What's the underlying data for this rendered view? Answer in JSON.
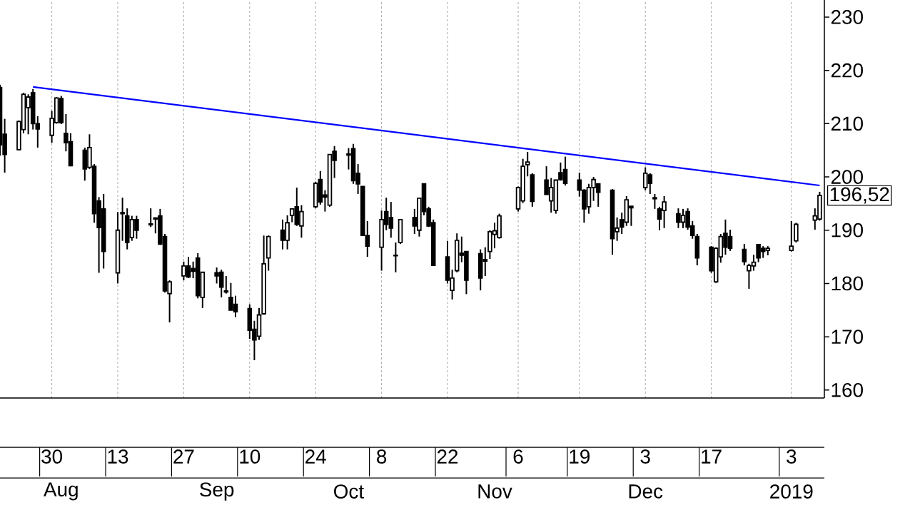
{
  "chart_data": {
    "type": "candlestick",
    "x": [
      "2018-07-19",
      "2018-07-20",
      "2018-07-23",
      "2018-07-24",
      "2018-07-25",
      "2018-07-26",
      "2018-07-27",
      "2018-07-30",
      "2018-07-31",
      "2018-08-01",
      "2018-08-02",
      "2018-08-03",
      "2018-08-06",
      "2018-08-07",
      "2018-08-08",
      "2018-08-09",
      "2018-08-10",
      "2018-08-13",
      "2018-08-14",
      "2018-08-15",
      "2018-08-16",
      "2018-08-17",
      "2018-08-20",
      "2018-08-21",
      "2018-08-22",
      "2018-08-23",
      "2018-08-24",
      "2018-08-27",
      "2018-08-28",
      "2018-08-29",
      "2018-08-30",
      "2018-08-31",
      "2018-09-03",
      "2018-09-04",
      "2018-09-05",
      "2018-09-06",
      "2018-09-07",
      "2018-09-10",
      "2018-09-11",
      "2018-09-12",
      "2018-09-13",
      "2018-09-14",
      "2018-09-17",
      "2018-09-18",
      "2018-09-19",
      "2018-09-20",
      "2018-09-21",
      "2018-09-24",
      "2018-09-25",
      "2018-09-26",
      "2018-09-27",
      "2018-09-28",
      "2018-10-01",
      "2018-10-02",
      "2018-10-03",
      "2018-10-04",
      "2018-10-05",
      "2018-10-08",
      "2018-10-09",
      "2018-10-10",
      "2018-10-11",
      "2018-10-12",
      "2018-10-15",
      "2018-10-16",
      "2018-10-17",
      "2018-10-18",
      "2018-10-19",
      "2018-10-22",
      "2018-10-23",
      "2018-10-24",
      "2018-10-25",
      "2018-10-26",
      "2018-10-29",
      "2018-10-30",
      "2018-10-31",
      "2018-11-01",
      "2018-11-02",
      "2018-11-06",
      "2018-11-07",
      "2018-11-08",
      "2018-11-09",
      "2018-11-12",
      "2018-11-13",
      "2018-11-14",
      "2018-11-15",
      "2018-11-16",
      "2018-11-19",
      "2018-11-20",
      "2018-11-21",
      "2018-11-22",
      "2018-11-23",
      "2018-11-26",
      "2018-11-27",
      "2018-11-28",
      "2018-11-29",
      "2018-11-30",
      "2018-12-03",
      "2018-12-04",
      "2018-12-05",
      "2018-12-06",
      "2018-12-07",
      "2018-12-10",
      "2018-12-11",
      "2018-12-12",
      "2018-12-13",
      "2018-12-14",
      "2018-12-17",
      "2018-12-18",
      "2018-12-19",
      "2018-12-20",
      "2018-12-21",
      "2018-12-24",
      "2018-12-25",
      "2018-12-26",
      "2018-12-27",
      "2018-12-28",
      "2018-12-29",
      "2019-01-03",
      "2019-01-04",
      "2019-01-08",
      "2019-01-09"
    ],
    "series": [
      {
        "type": "candlestick",
        "color": "#000000",
        "ohlc": [
          [
            216.8,
            217.3,
            204,
            206
          ],
          [
            208,
            210.9,
            200.8,
            204.2
          ],
          [
            205.1,
            210.6,
            205,
            210.4
          ],
          [
            208.9,
            215.8,
            208.2,
            215.5
          ],
          [
            213,
            215.5,
            208,
            215
          ],
          [
            215.8,
            216.5,
            208.9,
            210
          ],
          [
            210,
            211.4,
            205.5,
            209
          ],
          [
            207.8,
            212.4,
            206.4,
            211
          ],
          [
            210.2,
            215,
            210,
            214.8
          ],
          [
            214.7,
            215.2,
            209.9,
            210.2
          ],
          [
            208.2,
            211.8,
            204.8,
            206.4
          ],
          [
            206.6,
            208.2,
            202,
            202.1
          ],
          [
            205,
            205.5,
            199.3,
            201.5
          ],
          [
            201.8,
            208,
            201.5,
            205.5
          ],
          [
            202,
            202.4,
            191.4,
            193.1
          ],
          [
            195.5,
            196.2,
            182,
            190.5
          ],
          [
            194,
            196.8,
            182.8,
            186
          ],
          [
            182,
            193.4,
            180,
            190
          ],
          [
            193.1,
            196.1,
            188,
            193.3
          ],
          [
            192.7,
            194.1,
            186.4,
            187.7
          ],
          [
            188.6,
            192.7,
            188,
            192
          ],
          [
            192,
            192.7,
            188.4,
            190
          ],
          [
            191.2,
            194.1,
            190.6,
            191
          ],
          [
            192.3,
            192.4,
            189.4,
            192.1
          ],
          [
            192.7,
            194,
            187.2,
            187.4
          ],
          [
            188.8,
            189.3,
            178.3,
            178.6
          ],
          [
            178.1,
            180.6,
            172.7,
            180.3
          ],
          [
            181.4,
            184.1,
            180.6,
            183.3
          ],
          [
            183.3,
            185,
            181,
            181.2
          ],
          [
            182.8,
            184.1,
            181,
            182.3
          ],
          [
            184.8,
            185.7,
            177.2,
            177.7
          ],
          [
            177.4,
            182.1,
            175.4,
            182.1
          ],
          [
            182,
            183,
            180,
            181.4
          ],
          [
            182.1,
            182.6,
            177.4,
            179.3
          ],
          [
            178.6,
            181.4,
            178.1,
            178.4
          ],
          [
            177.4,
            180.1,
            175,
            175
          ],
          [
            176.1,
            177.7,
            173.7,
            174.7
          ],
          [
            175.3,
            176.1,
            169.6,
            171.2
          ],
          [
            171.4,
            173,
            165.6,
            169.4
          ],
          [
            170.1,
            175.4,
            169.4,
            174.1
          ],
          [
            174.3,
            189,
            174.3,
            183.7
          ],
          [
            184.8,
            189,
            182.4,
            188.8
          ],
          [
            190,
            192,
            186.4,
            188.1
          ],
          [
            188.1,
            192.8,
            186.4,
            191.4
          ],
          [
            192.8,
            194.1,
            191.5,
            194
          ],
          [
            194.4,
            198,
            190.8,
            191.1
          ],
          [
            190.8,
            194.7,
            188.6,
            193.5
          ],
          [
            194.4,
            199.1,
            194.1,
            198.8
          ],
          [
            199.5,
            201.1,
            194.8,
            195.3
          ],
          [
            196.6,
            197.5,
            193.5,
            196.2
          ],
          [
            194.7,
            204.2,
            194.4,
            204.2
          ],
          [
            204.8,
            205.8,
            199.8,
            203.1
          ],
          [
            204.3,
            205.4,
            201.4,
            204.1
          ],
          [
            205.3,
            206.2,
            198.7,
            199.3
          ],
          [
            200.7,
            202.4,
            196.8,
            198.7
          ],
          [
            198.2,
            198.2,
            189,
            189
          ],
          [
            189,
            191.7,
            185,
            187
          ],
          [
            186.8,
            193.7,
            182.4,
            192
          ],
          [
            193.5,
            196.1,
            190,
            191.1
          ],
          [
            192.4,
            195.3,
            188.6,
            190.4
          ],
          [
            185.3,
            187.7,
            182.1,
            185.2
          ],
          [
            187.7,
            192.1,
            187.4,
            192
          ],
          [
            192.4,
            194,
            189.3,
            190.8
          ],
          [
            190,
            196.1,
            188.8,
            196
          ],
          [
            198.7,
            198.8,
            192.8,
            193.5
          ],
          [
            194,
            194.4,
            190.6,
            190.8
          ],
          [
            191.4,
            192,
            183.4,
            183.4
          ],
          [
            185,
            188,
            180,
            180.6
          ],
          [
            178.7,
            182.6,
            177,
            181
          ],
          [
            182.4,
            189.4,
            182.1,
            188.1
          ],
          [
            185.7,
            188.8,
            184,
            185.3
          ],
          [
            186,
            186,
            178,
            180.6
          ],
          [
            185.6,
            186.4,
            178.7,
            181
          ],
          [
            184.5,
            186.8,
            181.4,
            184.2
          ],
          [
            186,
            190,
            184.6,
            189.7
          ],
          [
            189.2,
            191.4,
            186.6,
            189.9
          ],
          [
            188.6,
            193.1,
            188.4,
            192.7
          ],
          [
            194,
            198.2,
            193.5,
            198
          ],
          [
            195.5,
            203.4,
            195.1,
            202
          ],
          [
            202.3,
            204.7,
            200.1,
            202.8
          ],
          [
            200.4,
            200.7,
            194.4,
            195.4
          ],
          [
            199.4,
            202,
            196.7,
            196.7
          ],
          [
            195.5,
            199.8,
            193.3,
            198
          ],
          [
            193.7,
            199.5,
            193.1,
            199.4
          ],
          [
            200.8,
            202.7,
            199.3,
            199.5
          ],
          [
            201.4,
            203.8,
            198.4,
            198.8
          ],
          [
            199.4,
            200.8,
            196.3,
            197.5
          ],
          [
            197.5,
            197.7,
            191.4,
            194
          ],
          [
            194.4,
            198.7,
            193.1,
            198
          ],
          [
            198,
            200,
            195.5,
            199.5
          ],
          [
            198.7,
            198.8,
            194.4,
            197.1
          ],
          [
            197.5,
            197.7,
            185.4,
            188.4
          ],
          [
            189.7,
            192.4,
            188,
            190.4
          ],
          [
            192,
            193.3,
            189.3,
            190.6
          ],
          [
            191.5,
            196.4,
            190.8,
            195.7
          ],
          [
            194.5,
            194.5,
            190.8,
            194.2
          ],
          [
            198,
            201.8,
            197.5,
            200.7
          ],
          [
            200.4,
            200.7,
            196.8,
            198.8
          ],
          [
            196.1,
            196.8,
            194,
            195.9
          ],
          [
            194,
            194.4,
            190,
            192.1
          ],
          [
            193.7,
            196.4,
            190.4,
            195.3
          ],
          [
            193.1,
            194.1,
            190.4,
            191.5
          ],
          [
            191.5,
            194,
            190.4,
            192.8
          ],
          [
            193.5,
            194.1,
            190.1,
            190.6
          ],
          [
            190.8,
            191.7,
            188.4,
            189
          ],
          [
            188.8,
            189.3,
            183.4,
            184.8
          ],
          [
            186.8,
            187,
            182,
            182.4
          ],
          [
            180.3,
            186.8,
            180.1,
            186.6
          ],
          [
            185,
            189.3,
            183.9,
            188.8
          ],
          [
            189.4,
            192,
            185.4,
            186.8
          ],
          [
            188.8,
            190.1,
            186.1,
            186.6
          ],
          [
            186.4,
            187.4,
            183.4,
            184.1
          ],
          [
            182.4,
            183.7,
            179,
            183.4
          ],
          [
            183.3,
            185.4,
            182.4,
            184
          ],
          [
            187.3,
            187.4,
            184,
            184.8
          ],
          [
            186.6,
            187,
            184.8,
            186
          ],
          [
            186.2,
            187,
            185.3,
            186.6
          ],
          [
            186.2,
            191.7,
            186,
            187
          ],
          [
            188,
            191.4,
            187.7,
            191.1
          ],
          [
            191.9,
            194.1,
            190.1,
            192.7
          ],
          [
            192.1,
            197.2,
            191.8,
            196.52
          ]
        ]
      },
      {
        "type": "line",
        "color": "#0000ff",
        "x": [
          "2018-07-26",
          "2019-01-09"
        ],
        "values": [
          216.9,
          198.4
        ]
      }
    ],
    "xlim": [
      "2018-07-19",
      "2019-01-10"
    ],
    "xticks": [
      {
        "value": "2018-07-30",
        "label": "30"
      },
      {
        "value": "2018-08-13",
        "label": "13"
      },
      {
        "value": "2018-08-27",
        "label": "27"
      },
      {
        "value": "2018-09-10",
        "label": "10"
      },
      {
        "value": "2018-09-24",
        "label": "24"
      },
      {
        "value": "2018-10-08",
        "label": "8"
      },
      {
        "value": "2018-10-22",
        "label": "22"
      },
      {
        "value": "2018-11-06",
        "label": "6"
      },
      {
        "value": "2018-11-19",
        "label": "19"
      },
      {
        "value": "2018-12-03",
        "label": "3"
      },
      {
        "value": "2018-12-17",
        "label": "17"
      },
      {
        "value": "2019-01-03",
        "label": "3"
      }
    ],
    "x2lim": [
      "2018-07-19",
      "2019-01-10"
    ],
    "x2ticks": [
      {
        "value": "2018-08-01",
        "label": "Aug"
      },
      {
        "value": "2018-09-03",
        "label": "Sep"
      },
      {
        "value": "2018-10-01",
        "label": "Oct"
      },
      {
        "value": "2018-11-01",
        "label": "Nov"
      },
      {
        "value": "2018-12-03",
        "label": "Dec"
      },
      {
        "value": "2019-01-03",
        "label": "2019"
      }
    ],
    "ylim": [
      158.5,
      233.2
    ],
    "yticks": [
      160,
      170,
      180,
      190,
      200,
      210,
      220,
      230
    ],
    "grid": "x",
    "annotations": [
      "196,52"
    ]
  }
}
